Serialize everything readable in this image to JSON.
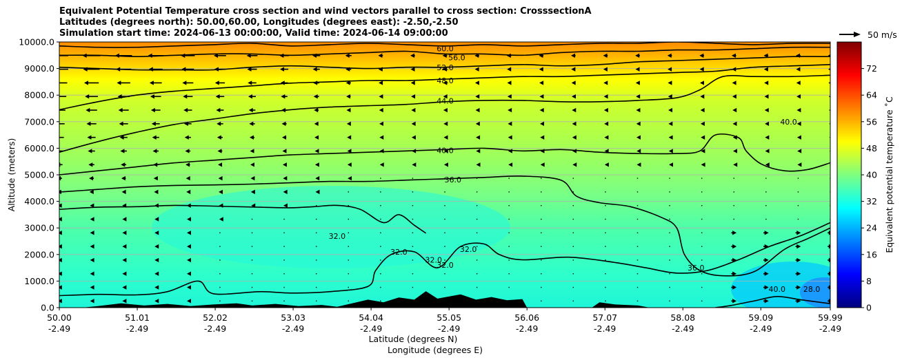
{
  "chart_data": {
    "type": "heatmap",
    "title_lines": [
      "Equivalent Potential Temperature cross section and wind vectors parallel to cross section: CrosssectionA",
      "Latitudes (degrees north): 50.00,60.00, Longitudes (degrees east): -2.50,-2.50",
      "Simulation start time: 2024-06-13 00:00:00, Valid time: 2024-06-14 09:00:00"
    ],
    "xlabel": "Latitude (degrees N)",
    "xlabel2": "Longitude (degrees E)",
    "ylabel": "Altitude (meters)",
    "xlim": [
      50.0,
      59.99
    ],
    "ylim": [
      0,
      10000
    ],
    "x_ticks": [
      {
        "lat": "50.00",
        "lon": "-2.49",
        "v": 50.0
      },
      {
        "lat": "51.01",
        "lon": "-2.49",
        "v": 51.01
      },
      {
        "lat": "52.02",
        "lon": "-2.49",
        "v": 52.02
      },
      {
        "lat": "53.03",
        "lon": "-2.49",
        "v": 53.03
      },
      {
        "lat": "54.04",
        "lon": "-2.49",
        "v": 54.04
      },
      {
        "lat": "55.05",
        "lon": "-2.49",
        "v": 55.05
      },
      {
        "lat": "56.06",
        "lon": "-2.49",
        "v": 56.06
      },
      {
        "lat": "57.07",
        "lon": "-2.49",
        "v": 57.07
      },
      {
        "lat": "58.08",
        "lon": "-2.49",
        "v": 58.08
      },
      {
        "lat": "59.09",
        "lon": "-2.49",
        "v": 59.09
      },
      {
        "lat": "59.99",
        "lon": "-2.49",
        "v": 59.99
      }
    ],
    "y_ticks": [
      {
        "label": "0.0",
        "v": 0
      },
      {
        "label": "1000.0",
        "v": 1000
      },
      {
        "label": "2000.0",
        "v": 2000
      },
      {
        "label": "3000.0",
        "v": 3000
      },
      {
        "label": "4000.0",
        "v": 4000
      },
      {
        "label": "5000.0",
        "v": 5000
      },
      {
        "label": "6000.0",
        "v": 6000
      },
      {
        "label": "7000.0",
        "v": 7000
      },
      {
        "label": "8000.0",
        "v": 8000
      },
      {
        "label": "9000.0",
        "v": 9000
      },
      {
        "label": "10000.0",
        "v": 10000
      }
    ],
    "grid": "horizontal",
    "colorbar": {
      "label": "Equivalent potential temperature ˚C",
      "min": 0,
      "max": 80,
      "ticks": [
        "0",
        "8",
        "16",
        "24",
        "32",
        "40",
        "48",
        "56",
        "64",
        "72"
      ],
      "colors": [
        "#00007f",
        "#0000ff",
        "#007fff",
        "#00ffff",
        "#7fff7f",
        "#ffff00",
        "#ff7f00",
        "#ff0000",
        "#7f0000"
      ]
    },
    "quiver_key": {
      "label": "50 m/s",
      "value": 50
    },
    "contours": [
      {
        "label": "28.0",
        "value": 28,
        "points": [
          [
            58.5,
            0
          ],
          [
            58.7,
            80
          ],
          [
            59.0,
            250
          ],
          [
            59.3,
            420
          ],
          [
            59.6,
            300
          ],
          [
            59.99,
            150
          ]
        ]
      },
      {
        "label": "32.0",
        "value": 32,
        "points": [
          [
            50.0,
            450
          ],
          [
            50.5,
            500
          ],
          [
            51.0,
            480
          ],
          [
            51.4,
            600
          ],
          [
            51.8,
            1000
          ],
          [
            52.0,
            520
          ],
          [
            52.6,
            600
          ],
          [
            53.0,
            550
          ],
          [
            53.5,
            600
          ],
          [
            54.0,
            800
          ],
          [
            54.1,
            1400
          ],
          [
            54.3,
            2000
          ],
          [
            54.6,
            2100
          ],
          [
            54.9,
            1500
          ],
          [
            55.2,
            2300
          ],
          [
            55.5,
            2400
          ],
          [
            55.7,
            2000
          ],
          [
            56.0,
            1800
          ],
          [
            56.6,
            1900
          ],
          [
            57.2,
            1700
          ],
          [
            57.6,
            1500
          ],
          [
            58.0,
            1300
          ],
          [
            58.4,
            1400
          ],
          [
            58.8,
            1800
          ],
          [
            59.2,
            2300
          ],
          [
            59.6,
            2700
          ],
          [
            59.99,
            3200
          ]
        ]
      },
      {
        "label": "32.0",
        "value": 32,
        "points": [
          [
            50.0,
            3700
          ],
          [
            50.5,
            3780
          ],
          [
            51.0,
            3800
          ],
          [
            51.5,
            3850
          ],
          [
            52.0,
            3820
          ],
          [
            52.6,
            3780
          ],
          [
            53.0,
            3760
          ],
          [
            53.3,
            3800
          ],
          [
            53.6,
            3850
          ],
          [
            53.9,
            3700
          ],
          [
            54.2,
            3200
          ],
          [
            54.4,
            3500
          ],
          [
            54.6,
            3100
          ],
          [
            54.75,
            2800
          ]
        ]
      },
      {
        "label": "36.0",
        "value": 36,
        "points": [
          [
            50.0,
            4350
          ],
          [
            50.5,
            4450
          ],
          [
            51.0,
            4550
          ],
          [
            51.5,
            4600
          ],
          [
            52.0,
            4620
          ],
          [
            52.5,
            4650
          ],
          [
            53.0,
            4700
          ],
          [
            53.5,
            4750
          ],
          [
            54.0,
            4750
          ],
          [
            54.5,
            4800
          ],
          [
            55.0,
            4850
          ],
          [
            55.5,
            4900
          ],
          [
            56.0,
            4950
          ],
          [
            56.5,
            4800
          ],
          [
            56.7,
            4200
          ],
          [
            57.0,
            3950
          ],
          [
            57.4,
            3800
          ],
          [
            57.8,
            3400
          ],
          [
            58.0,
            3000
          ],
          [
            58.1,
            2000
          ],
          [
            58.3,
            1400
          ],
          [
            58.6,
            1200
          ],
          [
            59.0,
            1350
          ],
          [
            59.4,
            2200
          ],
          [
            59.7,
            2600
          ],
          [
            59.99,
            3000
          ]
        ]
      },
      {
        "label": "40.0",
        "value": 40,
        "points": [
          [
            50.0,
            5000
          ],
          [
            50.5,
            5150
          ],
          [
            51.0,
            5300
          ],
          [
            51.5,
            5450
          ],
          [
            52.0,
            5550
          ],
          [
            52.5,
            5650
          ],
          [
            53.0,
            5750
          ],
          [
            53.5,
            5800
          ],
          [
            54.0,
            5850
          ],
          [
            54.5,
            5900
          ],
          [
            55.0,
            5950
          ],
          [
            55.5,
            6000
          ],
          [
            56.0,
            5900
          ],
          [
            56.5,
            5950
          ],
          [
            57.0,
            5850
          ],
          [
            57.5,
            5800
          ],
          [
            58.0,
            5800
          ],
          [
            58.3,
            5900
          ],
          [
            58.5,
            6500
          ],
          [
            58.8,
            6400
          ],
          [
            58.9,
            5900
          ],
          [
            59.1,
            5400
          ],
          [
            59.4,
            5150
          ],
          [
            59.7,
            5200
          ],
          [
            59.99,
            5450
          ]
        ]
      },
      {
        "label": "44.0",
        "value": 44,
        "points": [
          [
            50.0,
            5850
          ],
          [
            50.5,
            6250
          ],
          [
            51.0,
            6600
          ],
          [
            51.5,
            6900
          ],
          [
            52.0,
            7100
          ],
          [
            52.5,
            7300
          ],
          [
            53.0,
            7450
          ],
          [
            53.5,
            7550
          ],
          [
            54.0,
            7600
          ],
          [
            54.5,
            7650
          ],
          [
            55.0,
            7750
          ],
          [
            55.5,
            7800
          ],
          [
            56.0,
            7800
          ],
          [
            56.5,
            7750
          ],
          [
            57.0,
            7750
          ],
          [
            57.5,
            7800
          ],
          [
            58.0,
            7900
          ],
          [
            58.3,
            8200
          ],
          [
            58.6,
            8700
          ],
          [
            59.0,
            8700
          ],
          [
            59.5,
            8700
          ],
          [
            59.99,
            8750
          ]
        ]
      },
      {
        "label": "48.0",
        "value": 48,
        "points": [
          [
            50.0,
            7450
          ],
          [
            50.5,
            7750
          ],
          [
            51.0,
            8000
          ],
          [
            51.5,
            8150
          ],
          [
            52.0,
            8250
          ],
          [
            52.5,
            8350
          ],
          [
            53.0,
            8450
          ],
          [
            53.5,
            8500
          ],
          [
            54.0,
            8550
          ],
          [
            54.5,
            8550
          ],
          [
            55.0,
            8600
          ],
          [
            55.5,
            8650
          ],
          [
            56.0,
            8700
          ],
          [
            56.5,
            8700
          ],
          [
            57.0,
            8750
          ],
          [
            57.5,
            8800
          ],
          [
            58.0,
            8850
          ],
          [
            58.5,
            8900
          ],
          [
            59.0,
            9050
          ],
          [
            59.5,
            9100
          ],
          [
            59.99,
            9150
          ]
        ]
      },
      {
        "label": "52.0",
        "value": 52,
        "points": [
          [
            50.0,
            9050
          ],
          [
            50.5,
            9000
          ],
          [
            51.0,
            8950
          ],
          [
            51.5,
            8950
          ],
          [
            52.0,
            8950
          ],
          [
            52.5,
            9050
          ],
          [
            53.0,
            9100
          ],
          [
            53.5,
            9050
          ],
          [
            54.0,
            9000
          ],
          [
            54.5,
            9050
          ],
          [
            55.0,
            9050
          ],
          [
            55.5,
            9100
          ],
          [
            56.0,
            9150
          ],
          [
            56.5,
            9100
          ],
          [
            57.0,
            9150
          ],
          [
            57.5,
            9250
          ],
          [
            58.0,
            9300
          ],
          [
            58.5,
            9350
          ],
          [
            59.0,
            9400
          ],
          [
            59.5,
            9450
          ],
          [
            59.99,
            9450
          ]
        ]
      },
      {
        "label": "56.0",
        "value": 56,
        "points": [
          [
            50.0,
            9500
          ],
          [
            50.5,
            9500
          ],
          [
            51.0,
            9450
          ],
          [
            51.5,
            9500
          ],
          [
            52.0,
            9550
          ],
          [
            52.5,
            9550
          ],
          [
            53.0,
            9500
          ],
          [
            53.5,
            9550
          ],
          [
            54.0,
            9600
          ],
          [
            54.5,
            9650
          ],
          [
            55.0,
            9550
          ],
          [
            55.5,
            9550
          ],
          [
            56.0,
            9500
          ],
          [
            56.5,
            9600
          ],
          [
            57.0,
            9650
          ],
          [
            57.5,
            9650
          ],
          [
            58.0,
            9700
          ],
          [
            58.5,
            9700
          ],
          [
            59.0,
            9750
          ],
          [
            59.5,
            9800
          ],
          [
            59.99,
            9800
          ]
        ]
      },
      {
        "label": "60.0",
        "value": 60,
        "points": [
          [
            50.0,
            9850
          ],
          [
            50.5,
            9800
          ],
          [
            51.0,
            9800
          ],
          [
            51.5,
            9850
          ],
          [
            52.0,
            9900
          ],
          [
            52.5,
            9950
          ],
          [
            53.0,
            9850
          ],
          [
            53.5,
            9900
          ],
          [
            54.0,
            9950
          ],
          [
            54.5,
            9900
          ],
          [
            55.0,
            9850
          ],
          [
            55.5,
            9900
          ],
          [
            56.0,
            9850
          ],
          [
            56.5,
            9900
          ],
          [
            57.0,
            9950
          ],
          [
            57.5,
            9950
          ],
          [
            58.0,
            10000
          ],
          [
            58.5,
            9950
          ],
          [
            59.0,
            9900
          ],
          [
            59.5,
            9950
          ],
          [
            59.99,
            9950
          ]
        ]
      }
    ],
    "contour_labels": [
      {
        "text": "60.0",
        "x": 55.0,
        "y": 9750
      },
      {
        "text": "56.0",
        "x": 55.15,
        "y": 9420
      },
      {
        "text": "52.0",
        "x": 55.0,
        "y": 9040
      },
      {
        "text": "48.0",
        "x": 55.0,
        "y": 8550
      },
      {
        "text": "44.0",
        "x": 55.0,
        "y": 7790
      },
      {
        "text": "40.0",
        "x": 55.0,
        "y": 5920
      },
      {
        "text": "36.0",
        "x": 55.1,
        "y": 4820
      },
      {
        "text": "32.0",
        "x": 53.6,
        "y": 2700
      },
      {
        "text": "32.0",
        "x": 54.4,
        "y": 2100
      },
      {
        "text": "32.0",
        "x": 54.85,
        "y": 1800
      },
      {
        "text": "32.0",
        "x": 55.0,
        "y": 1600
      },
      {
        "text": "32.0",
        "x": 55.3,
        "y": 2200
      },
      {
        "text": "36.0",
        "x": 58.25,
        "y": 1500
      },
      {
        "text": "40.0",
        "x": 59.45,
        "y": 7000
      },
      {
        "text": "40.0",
        "x": 59.3,
        "y": 700
      },
      {
        "text": "28.0",
        "x": 59.75,
        "y": 700
      }
    ],
    "terrain": [
      [
        50.0,
        0
      ],
      [
        50.3,
        0
      ],
      [
        50.5,
        60
      ],
      [
        50.8,
        160
      ],
      [
        51.1,
        80
      ],
      [
        51.4,
        140
      ],
      [
        51.7,
        60
      ],
      [
        52.0,
        120
      ],
      [
        52.3,
        160
      ],
      [
        52.5,
        80
      ],
      [
        52.8,
        140
      ],
      [
        53.1,
        60
      ],
      [
        53.4,
        100
      ],
      [
        53.6,
        30
      ],
      [
        54.0,
        300
      ],
      [
        54.2,
        200
      ],
      [
        54.4,
        380
      ],
      [
        54.6,
        300
      ],
      [
        54.75,
        620
      ],
      [
        54.9,
        340
      ],
      [
        55.2,
        500
      ],
      [
        55.4,
        300
      ],
      [
        55.6,
        400
      ],
      [
        55.8,
        280
      ],
      [
        56.0,
        320
      ],
      [
        56.06,
        0
      ],
      [
        56.9,
        0
      ],
      [
        57.0,
        200
      ],
      [
        57.2,
        120
      ],
      [
        57.5,
        80
      ],
      [
        57.65,
        0
      ],
      [
        59.99,
        0
      ]
    ]
  }
}
